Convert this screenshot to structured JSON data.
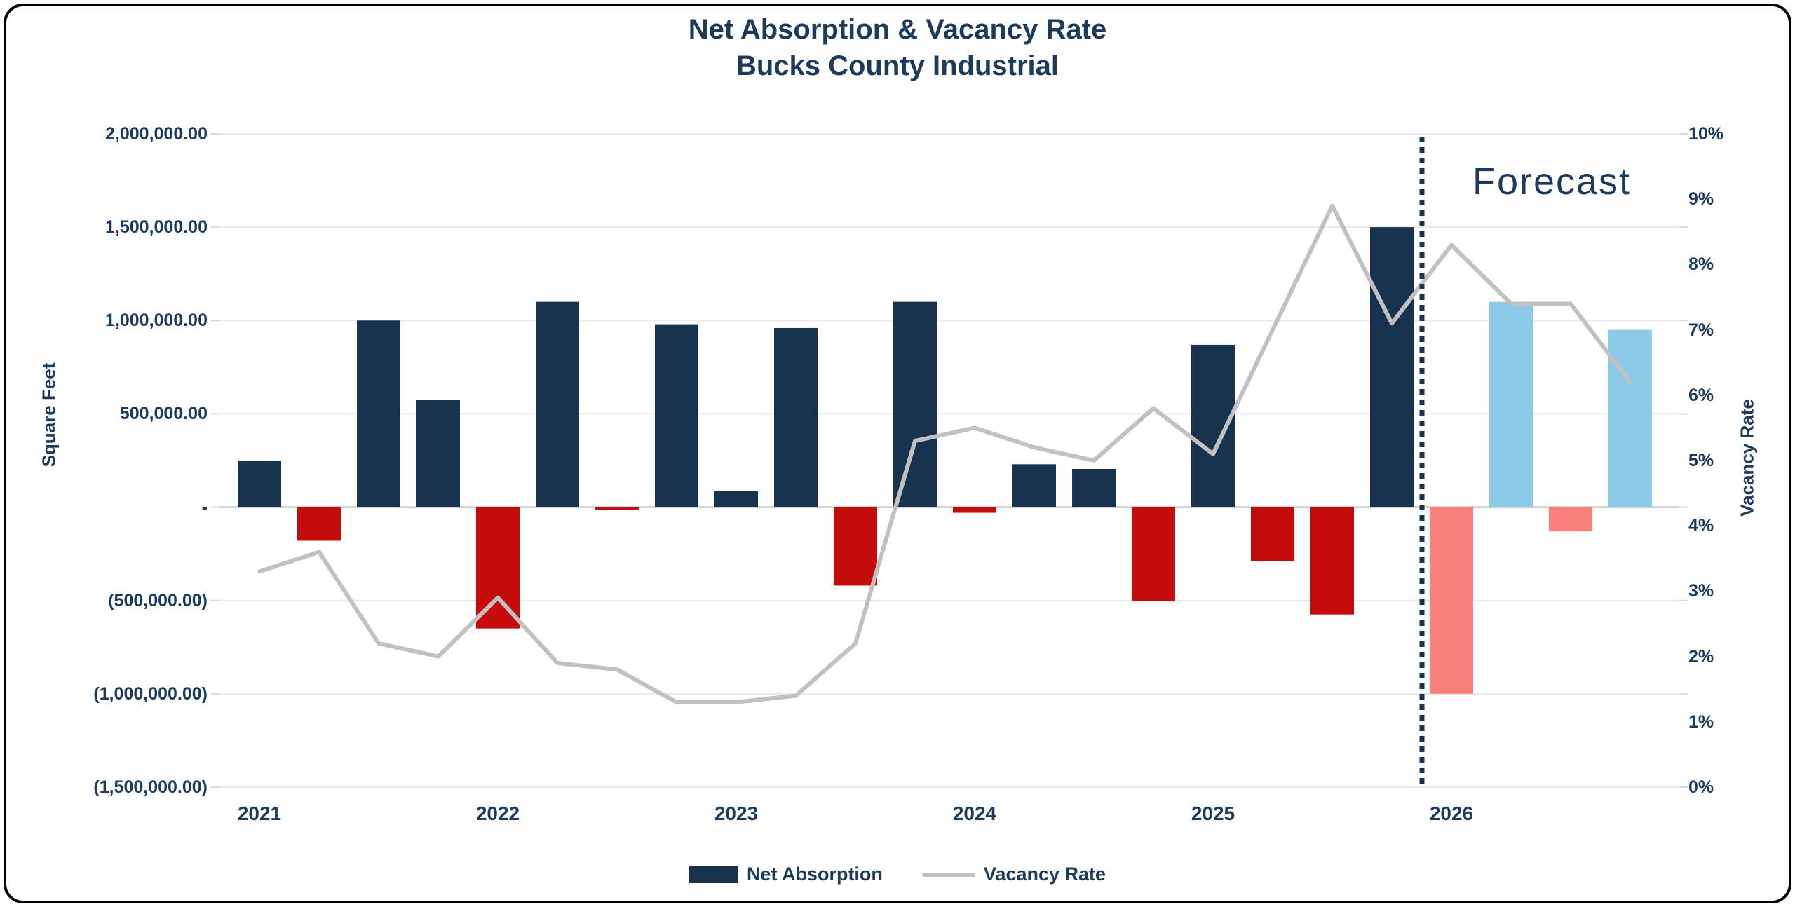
{
  "window": {
    "background": "#ffffff",
    "border_color": "#000000"
  },
  "chart_data": {
    "type": "bar",
    "title": "Net Absorption & Vacancy Rate",
    "subtitle": "Bucks County Industrial",
    "y_left": {
      "title": "Square Feet",
      "labels": [
        "2,000,000.00",
        "1,500,000.00",
        "1,000,000.00",
        "500,000.00",
        "-",
        "(500,000.00)",
        "(1,000,000.00)",
        "(1,500,000.00)"
      ],
      "max": 2000000,
      "min": -1500000,
      "step": 500000
    },
    "y_right": {
      "title": "Vacancy Rate",
      "labels": [
        "10%",
        "9%",
        "8%",
        "7%",
        "6%",
        "5%",
        "4%",
        "3%",
        "2%",
        "1%",
        "0%"
      ],
      "max": 10,
      "min": 0,
      "step": 1
    },
    "x_axis": {
      "year_labels": [
        "2021",
        "2022",
        "2023",
        "2024",
        "2025",
        "2026"
      ],
      "quarters_per_year": 4
    },
    "categories": [
      "2021 Q1",
      "2021 Q2",
      "2021 Q3",
      "2021 Q4",
      "2022 Q1",
      "2022 Q2",
      "2022 Q3",
      "2022 Q4",
      "2023 Q1",
      "2023 Q2",
      "2023 Q3",
      "2023 Q4",
      "2024 Q1",
      "2024 Q2",
      "2024 Q3",
      "2024 Q4",
      "2025 Q1",
      "2025 Q2",
      "2025 Q3",
      "2025 Q4",
      "2026 Q1",
      "2026 Q2",
      "2026 Q3",
      "2026 Q4"
    ],
    "series": [
      {
        "name": "Net Absorption",
        "type": "bar",
        "unit": "square feet",
        "values": [
          250000,
          -180000,
          1000000,
          575000,
          -650000,
          1100000,
          -15000,
          980000,
          85000,
          960000,
          -420000,
          1100000,
          -30000,
          230000,
          205000,
          -505000,
          870000,
          -290000,
          -575000,
          1500000,
          -1000000,
          1100000,
          -130000,
          950000
        ],
        "colors": {
          "positive": "#17324c",
          "negative": "#c40c0c",
          "forecast_positive": "#89cbe9",
          "forecast_negative": "#f9817a"
        }
      },
      {
        "name": "Vacancy Rate",
        "type": "line",
        "unit": "percent",
        "values": [
          3.3,
          3.6,
          2.2,
          2.0,
          2.9,
          1.9,
          1.8,
          1.3,
          1.3,
          1.4,
          2.2,
          5.3,
          5.5,
          5.2,
          5.0,
          5.8,
          5.1,
          7.0,
          8.9,
          7.1,
          8.3,
          7.4,
          7.4,
          6.2
        ],
        "color": "#c1c1c1"
      }
    ],
    "forecast": {
      "label": "Forecast",
      "start_index": 20,
      "divider_color": "#17324c"
    },
    "legend": [
      {
        "label": "Net Absorption",
        "swatch": "bar",
        "color": "#17324c"
      },
      {
        "label": "Vacancy Rate",
        "swatch": "line",
        "color": "#c1c1c1"
      }
    ],
    "grid": {
      "line_color": "#e9e9e9",
      "zero_line_color": "#d2d2d2",
      "tick_color": "#d9d9d9"
    },
    "legend_position": "bottom",
    "gridlines": true
  }
}
